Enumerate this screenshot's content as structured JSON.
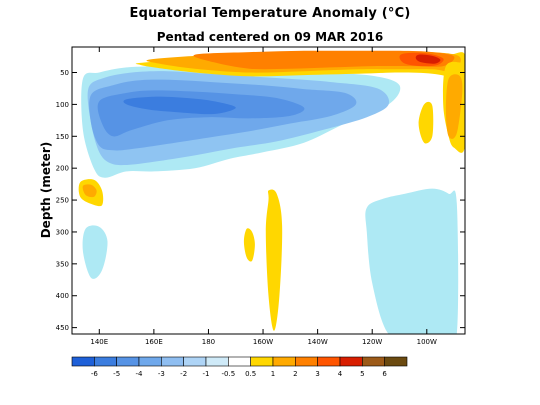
{
  "title": "Equatorial Temperature Anomaly (°C)",
  "subtitle": "Pentad centered on 09 MAR 2016",
  "chart_data": {
    "type": "heatmap",
    "title": "Equatorial Temperature Anomaly (°C)",
    "subtitle": "Pentad centered on 09 MAR 2016",
    "ylabel": "Depth (meter)",
    "xlabel": "",
    "x_ticks": [
      "140E",
      "160E",
      "180",
      "160W",
      "140W",
      "120W",
      "100W"
    ],
    "x_tick_values": [
      140,
      160,
      180,
      200,
      220,
      240,
      260
    ],
    "xlim": [
      130,
      274
    ],
    "y_ticks": [
      "50",
      "100",
      "150",
      "200",
      "250",
      "300",
      "350",
      "400",
      "450"
    ],
    "y_tick_values": [
      50,
      100,
      150,
      200,
      250,
      300,
      350,
      400,
      450
    ],
    "ylim": [
      460,
      10
    ],
    "colorbar": {
      "labels": [
        "-6",
        "-5",
        "-4",
        "-3",
        "-2",
        "-1",
        "-0.5",
        "0.5",
        "1",
        "2",
        "3",
        "4",
        "5",
        "6"
      ],
      "colors": [
        "#1e60d8",
        "#3b7ddf",
        "#5693e5",
        "#6fa8eb",
        "#8fbef1",
        "#aed4f6",
        "#cfeaf8",
        "#ffffff",
        "#ffd700",
        "#ffaa00",
        "#ff8000",
        "#ff5500",
        "#d81e00",
        "#9c5a18",
        "#6b4a10"
      ]
    },
    "regions": [
      {
        "level": "cold_-0.5_-1",
        "lon": [
          134,
          140,
          150,
          165,
          180,
          200,
          220,
          240,
          250,
          246,
          230,
          215,
          200,
          188,
          175,
          160,
          150,
          142,
          138,
          134
        ],
        "depth": [
          60,
          50,
          42,
          40,
          40,
          45,
          50,
          55,
          70,
          100,
          130,
          160,
          175,
          185,
          200,
          205,
          205,
          215,
          200,
          140
        ]
      },
      {
        "level": "cold_-1_-2",
        "lon": [
          136,
          142,
          152,
          165,
          180,
          195,
          210,
          225,
          242,
          246,
          238,
          222,
          205,
          190,
          175,
          160,
          150,
          144,
          140,
          137
        ],
        "depth": [
          75,
          58,
          50,
          48,
          52,
          56,
          60,
          65,
          75,
          100,
          120,
          140,
          158,
          168,
          180,
          190,
          195,
          192,
          175,
          130
        ]
      },
      {
        "level": "cold_-2_-3",
        "lon": [
          137,
          145,
          155,
          170,
          185,
          200,
          215,
          230,
          234,
          225,
          210,
          195,
          180,
          165,
          152,
          145,
          140,
          137
        ],
        "depth": [
          85,
          70,
          62,
          62,
          66,
          70,
          76,
          82,
          100,
          118,
          130,
          142,
          152,
          162,
          170,
          172,
          165,
          130
        ]
      },
      {
        "level": "cold_-3_-4",
        "lon": [
          140,
          150,
          160,
          175,
          190,
          205,
          215,
          210,
          195,
          180,
          165,
          152,
          145,
          141
        ],
        "depth": [
          95,
          82,
          78,
          80,
          84,
          90,
          105,
          118,
          122,
          120,
          125,
          140,
          150,
          130
        ]
      },
      {
        "level": "cold_-4_-5",
        "lon": [
          150,
          160,
          172,
          182,
          190,
          182,
          168,
          158,
          150
        ],
        "depth": [
          92,
          88,
          90,
          95,
          105,
          115,
          112,
          108,
          100
        ]
      },
      {
        "level": "cold_-0.5_-1",
        "lon": [
          238,
          244,
          252,
          262,
          268,
          271,
          271,
          266,
          256,
          246,
          240,
          238
        ],
        "depth": [
          262,
          248,
          240,
          232,
          240,
          255,
          460,
          460,
          460,
          460,
          380,
          300
        ]
      },
      {
        "level": "cold_-0.5_-1",
        "lon": [
          135,
          140,
          143,
          141,
          137,
          134
        ],
        "depth": [
          295,
          292,
          315,
          360,
          372,
          330
        ]
      },
      {
        "level": "warm_0.5_1",
        "lon": [
          155,
          175,
          195,
          215,
          235,
          255,
          268,
          274,
          274,
          270,
          262,
          250,
          235,
          215,
          195,
          175,
          160,
          155
        ],
        "depth": [
          35,
          28,
          24,
          22,
          22,
          22,
          22,
          22,
          75,
          60,
          52,
          50,
          52,
          54,
          56,
          50,
          42,
          38
        ]
      },
      {
        "level": "warm_1_2",
        "lon": [
          158,
          175,
          195,
          215,
          235,
          250,
          262,
          272,
          270,
          262,
          250,
          235,
          215,
          195,
          175,
          162
        ],
        "depth": [
          30,
          24,
          20,
          18,
          18,
          18,
          18,
          25,
          48,
          45,
          45,
          45,
          48,
          50,
          44,
          36
        ]
      },
      {
        "level": "warm_2_3",
        "lon": [
          175,
          195,
          215,
          235,
          250,
          262,
          270,
          266,
          255,
          240,
          225,
          210,
          195,
          182
        ],
        "depth": [
          22,
          18,
          16,
          16,
          16,
          18,
          25,
          40,
          40,
          40,
          42,
          44,
          44,
          34
        ]
      },
      {
        "level": "warm_3_4",
        "lon": [
          252,
          260,
          266,
          264,
          258,
          252,
          250
        ],
        "depth": [
          20,
          20,
          28,
          38,
          40,
          36,
          26
        ]
      },
      {
        "level": "warm_4_5",
        "lon": [
          257,
          262,
          265,
          263,
          258,
          256
        ],
        "depth": [
          22,
          24,
          30,
          36,
          34,
          28
        ]
      },
      {
        "level": "warm_0.5_1",
        "lon": [
          267,
          273,
          274,
          274,
          270,
          268,
          266
        ],
        "depth": [
          40,
          35,
          40,
          165,
          168,
          150,
          100
        ]
      },
      {
        "level": "warm_1_2",
        "lon": [
          268,
          272,
          273,
          271,
          268,
          267
        ],
        "depth": [
          60,
          55,
          80,
          145,
          150,
          110
        ]
      },
      {
        "level": "warm_0.5_1",
        "lon": [
          259,
          262,
          262,
          259,
          257
        ],
        "depth": [
          100,
          102,
          150,
          160,
          130
        ]
      },
      {
        "level": "warm_0.5_1",
        "lon": [
          202,
          205,
          207,
          206,
          204,
          202,
          201,
          202
        ],
        "depth": [
          235,
          240,
          290,
          400,
          455,
          400,
          300,
          250
        ]
      },
      {
        "level": "warm_0.5_1",
        "lon": [
          194,
          196,
          197,
          196,
          194,
          193
        ],
        "depth": [
          295,
          300,
          320,
          345,
          340,
          315
        ]
      },
      {
        "level": "warm_0.5_1",
        "lon": [
          133,
          138,
          141,
          141,
          137,
          133
        ],
        "depth": [
          222,
          218,
          235,
          258,
          256,
          245
        ]
      },
      {
        "level": "warm_1_2",
        "lon": [
          134,
          137,
          139,
          138,
          135
        ],
        "depth": [
          228,
          226,
          235,
          245,
          242
        ]
      }
    ]
  }
}
